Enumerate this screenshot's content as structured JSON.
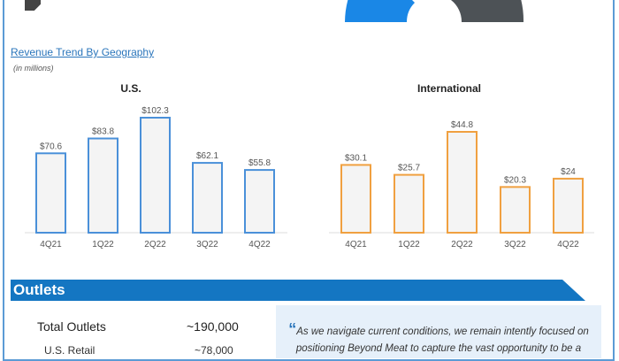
{
  "section": {
    "title": "Revenue Trend By Geography",
    "note": "(in millions)"
  },
  "colors": {
    "us": "#4a90d9",
    "international": "#f0a040",
    "header": "#1476c2",
    "donut_blue": "#1a87e6",
    "donut_gray": "#4d5256"
  },
  "chart_data": [
    {
      "type": "bar",
      "title": "U.S.",
      "categories": [
        "4Q21",
        "1Q22",
        "2Q22",
        "3Q22",
        "4Q22"
      ],
      "values": [
        70.6,
        83.8,
        102.3,
        62.1,
        55.8
      ],
      "labels": [
        "$70.6",
        "$83.8",
        "$102.3",
        "$62.1",
        "$55.8"
      ],
      "ylim": [
        0,
        102.3
      ]
    },
    {
      "type": "bar",
      "title": "International",
      "categories": [
        "4Q21",
        "1Q22",
        "2Q22",
        "3Q22",
        "4Q22"
      ],
      "values": [
        30.1,
        25.7,
        44.8,
        20.3,
        24
      ],
      "labels": [
        "$30.1",
        "$25.7",
        "$44.8",
        "$20.3",
        "$24"
      ],
      "ylim": [
        0,
        44.8
      ]
    }
  ],
  "outlets": {
    "title": "Outlets",
    "total_label": "Total Outlets",
    "total_value": "~190,000",
    "us_retail_label": "U.S. Retail",
    "us_retail_value": "~78,000",
    "quote": "As we navigate current conditions, we remain intently focused on positioning Beyond Meat to capture the vast opportunity to be a"
  }
}
